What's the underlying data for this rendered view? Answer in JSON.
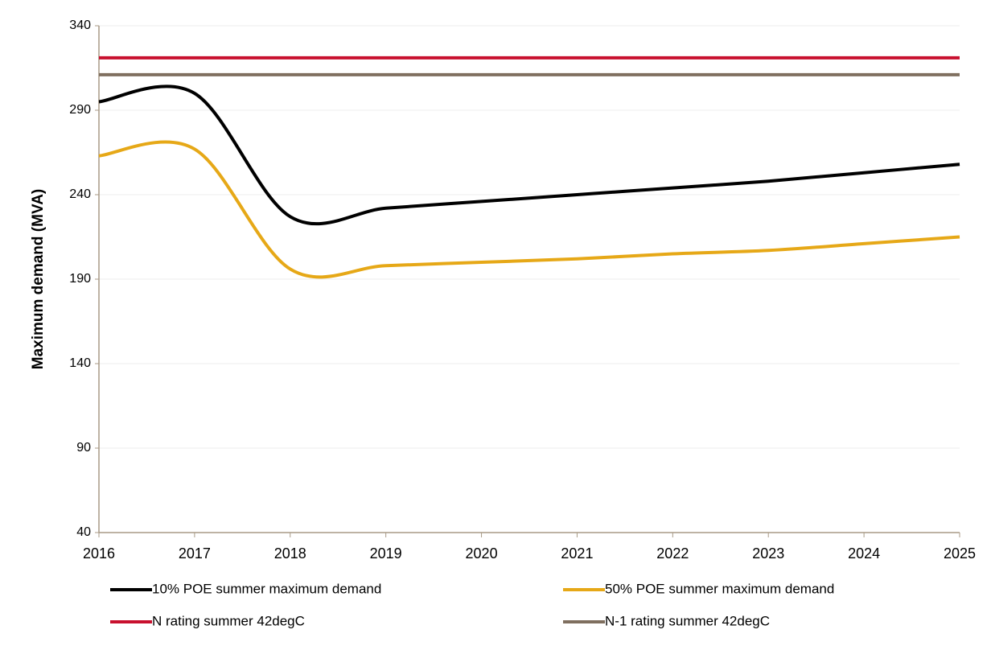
{
  "chart_data": {
    "type": "line",
    "y_label": "Maximum demand (MVA)",
    "categories": [
      "2016",
      "2017",
      "2018",
      "2019",
      "2020",
      "2021",
      "2022",
      "2023",
      "2024",
      "2025"
    ],
    "ylim": [
      40,
      340
    ],
    "yticks": [
      40,
      90,
      140,
      190,
      240,
      290,
      340
    ],
    "grid": true,
    "smooth": true,
    "series": [
      {
        "name": "10% POE summer maximum demand",
        "color": "#000000",
        "values": [
          295,
          300,
          227,
          232,
          236,
          240,
          244,
          248,
          253,
          258
        ]
      },
      {
        "name": "50% POE summer maximum demand",
        "color": "#e6a817",
        "values": [
          263,
          267,
          196,
          198,
          200,
          202,
          205,
          207,
          211,
          215
        ]
      },
      {
        "name": "N rating summer 42degC",
        "color": "#c8102e",
        "values": [
          321,
          321,
          321,
          321,
          321,
          321,
          321,
          321,
          321,
          321
        ]
      },
      {
        "name": "N-1 rating summer 42degC",
        "color": "#7f6f5f",
        "values": [
          311,
          311,
          311,
          311,
          311,
          311,
          311,
          311,
          311,
          311
        ]
      }
    ]
  }
}
